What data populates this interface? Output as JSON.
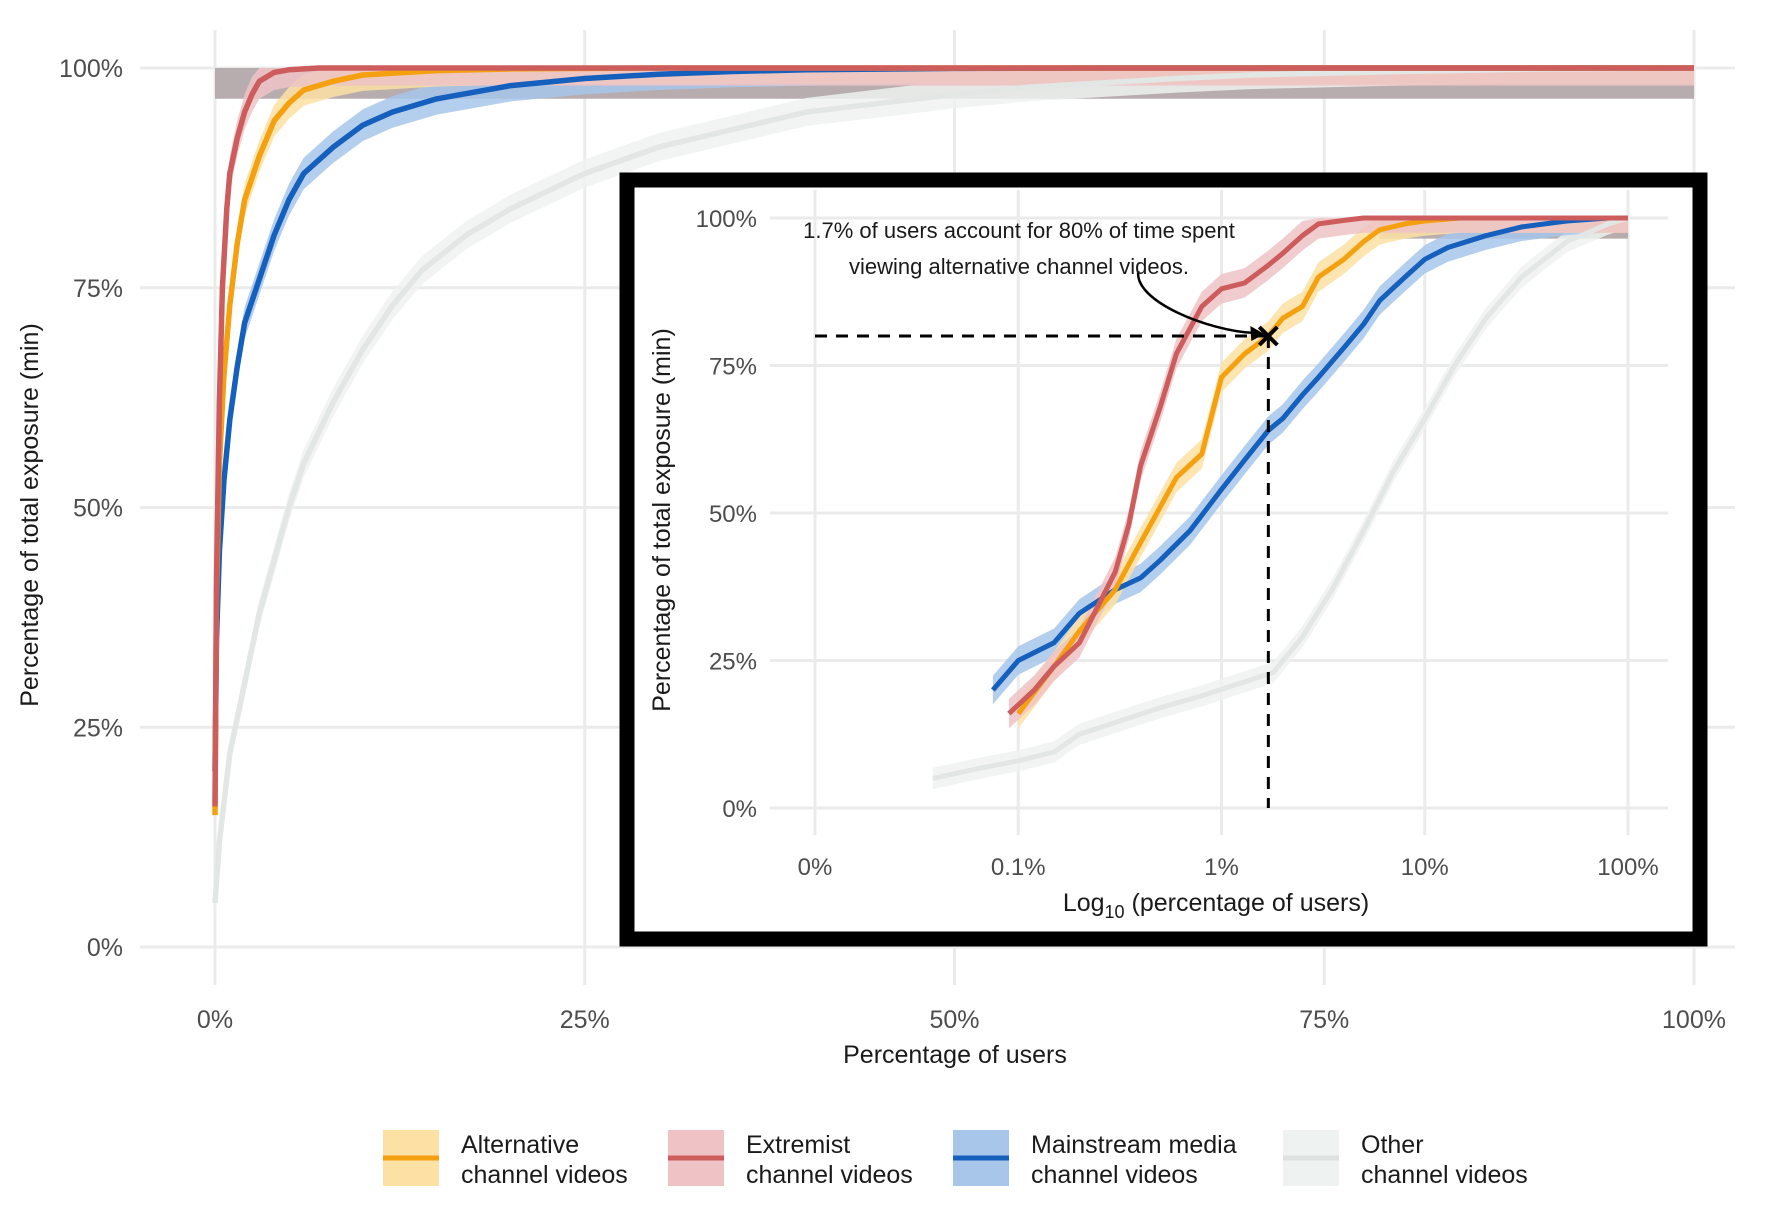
{
  "chart_data": [
    {
      "type": "line",
      "title": "",
      "xlabel": "Percentage of users",
      "ylabel": "Percentage of total exposure (min)",
      "x_ticks": [
        "0%",
        "25%",
        "50%",
        "75%",
        "100%"
      ],
      "y_ticks": [
        "0%",
        "25%",
        "50%",
        "75%",
        "100%"
      ],
      "xlim": [
        0,
        100
      ],
      "ylim": [
        0,
        100
      ],
      "grid": true,
      "series": [
        {
          "name": "Other channel videos",
          "color": "#e2e6e4",
          "band_color": "#eef2f0",
          "x": [
            0,
            0.3,
            1,
            2,
            3,
            4,
            5,
            6,
            8,
            10,
            12,
            14,
            17,
            20,
            25,
            30,
            35,
            40,
            45,
            50,
            55,
            60,
            65,
            70,
            80,
            90,
            100
          ],
          "y": [
            5,
            12,
            22,
            30,
            38,
            44,
            50,
            55,
            62,
            68,
            73,
            77,
            81,
            84,
            88,
            91,
            93,
            95,
            96,
            97,
            97.8,
            98.3,
            98.8,
            99.2,
            99.6,
            99.9,
            100
          ],
          "band": 1.6
        },
        {
          "name": "Mainstream media channel videos",
          "color": "#1560bd",
          "band_color": "#a7c6ea",
          "x": [
            0,
            0.1,
            0.3,
            0.6,
            1,
            1.5,
            2,
            3,
            4,
            5,
            6,
            8,
            10,
            12,
            15,
            20,
            25,
            30,
            35,
            40,
            50,
            60,
            100
          ],
          "y": [
            20,
            35,
            45,
            53,
            60,
            66,
            71,
            76,
            81,
            85,
            88,
            91,
            93.5,
            95,
            96.5,
            98,
            98.8,
            99.3,
            99.6,
            99.8,
            99.95,
            100,
            100
          ],
          "band": 1.8
        },
        {
          "name": "Alternative channel videos",
          "color": "#f5a00f",
          "band_color": "#fde0a3",
          "x": [
            0,
            0.1,
            0.3,
            0.6,
            1,
            1.5,
            2,
            3,
            4,
            5,
            6,
            8,
            10,
            15,
            20,
            30,
            50,
            100
          ],
          "y": [
            15,
            40,
            55,
            65,
            73,
            80,
            85,
            90,
            94,
            96,
            97.5,
            98.5,
            99.2,
            99.7,
            99.9,
            100,
            100,
            100
          ],
          "band": 1.8
        },
        {
          "name": "Extremist channel videos",
          "color": "#cd5c5c",
          "band_color": "#efc3c5",
          "x": [
            0,
            0.1,
            0.3,
            0.5,
            0.8,
            1,
            1.5,
            2,
            2.5,
            3,
            4,
            5,
            7,
            10,
            20,
            50,
            100
          ],
          "y": [
            16,
            42,
            62,
            75,
            84,
            88,
            92,
            95,
            97,
            98.5,
            99.5,
            99.8,
            100,
            100,
            100,
            100,
            100
          ],
          "band": 2.0
        }
      ],
      "shaded_region": {
        "x": [
          0,
          100
        ],
        "y": [
          96.5,
          100
        ],
        "color": "#b3a9ab"
      }
    },
    {
      "type": "line",
      "title": "",
      "xlabel": "Log10 (percentage of users)",
      "xlabel_main": "Log",
      "xlabel_sub": "10",
      "xlabel_rest": " (percentage of users)",
      "ylabel": "Percentage of total exposure (min)",
      "x_scale": "log10",
      "x_ticks": [
        "0%",
        "0.1%",
        "1%",
        "10%",
        "100%"
      ],
      "x_tick_values": [
        0.01,
        0.1,
        1,
        10,
        100
      ],
      "y_ticks": [
        "0%",
        "25%",
        "50%",
        "75%",
        "100%"
      ],
      "xlim": [
        0.01,
        100
      ],
      "ylim": [
        0,
        100
      ],
      "grid": true,
      "annotation": {
        "line1": "1.7% of users account for 80% of time spent",
        "line2": "viewing alternative channel videos.",
        "point": [
          1.7,
          80
        ]
      },
      "series": [
        {
          "name": "Other channel videos",
          "color": "#e2e6e4",
          "band_color": "#eef2f0",
          "x": [
            0.038,
            0.06,
            0.1,
            0.15,
            0.2,
            0.3,
            0.5,
            0.8,
            1.2,
            1.8,
            2.5,
            3.5,
            5,
            7,
            10,
            14,
            20,
            30,
            50,
            80,
            100
          ],
          "y": [
            5,
            6.5,
            8,
            9.5,
            12.5,
            14.5,
            17,
            19,
            21,
            23,
            29,
            37,
            47,
            57,
            66,
            75,
            83,
            90,
            96,
            99,
            100
          ],
          "band": 1.8
        },
        {
          "name": "Mainstream media channel videos",
          "color": "#1560bd",
          "band_color": "#a7c6ea",
          "x": [
            0.075,
            0.1,
            0.15,
            0.2,
            0.3,
            0.4,
            0.5,
            0.7,
            1.0,
            1.3,
            1.7,
            2.0,
            2.5,
            3.0,
            4.0,
            5.0,
            6.0,
            8.0,
            10,
            13,
            20,
            30,
            50,
            80,
            100
          ],
          "y": [
            20,
            25,
            28,
            33,
            37,
            39,
            42,
            47,
            54,
            59,
            64,
            66,
            70,
            73,
            78,
            82,
            86,
            90,
            93,
            95,
            97,
            98.5,
            99.5,
            100,
            100
          ],
          "band": 2.4
        },
        {
          "name": "Alternative channel videos",
          "color": "#f5a00f",
          "band_color": "#fde0a3",
          "x": [
            0.1,
            0.15,
            0.2,
            0.3,
            0.4,
            0.6,
            0.8,
            1.0,
            1.3,
            1.7,
            2.0,
            2.5,
            3.0,
            4.0,
            5.0,
            6.0,
            8.0,
            10,
            15,
            20,
            30,
            50,
            100
          ],
          "y": [
            16,
            24,
            30,
            37,
            45,
            56,
            60,
            73,
            77,
            80,
            83,
            85,
            90,
            93,
            96,
            98,
            99,
            99.5,
            100,
            100,
            100,
            100,
            100
          ],
          "band": 2.5
        },
        {
          "name": "Extremist channel videos",
          "color": "#cd5c5c",
          "band_color": "#efc3c5",
          "x": [
            0.09,
            0.12,
            0.15,
            0.2,
            0.3,
            0.35,
            0.4,
            0.5,
            0.6,
            0.8,
            1.0,
            1.3,
            1.7,
            2.0,
            2.5,
            3.0,
            4.0,
            5.0,
            7.0,
            10,
            20,
            50,
            100
          ],
          "y": [
            16,
            20,
            24,
            28,
            40,
            48,
            58,
            68,
            77,
            85,
            88,
            89,
            92,
            94,
            97,
            99,
            99.6,
            100,
            100,
            100,
            100,
            100,
            100
          ],
          "band": 2.5
        }
      ],
      "shaded_region": {
        "x": [
          6,
          100
        ],
        "y": [
          96.5,
          100
        ],
        "color": "#b3a9ab"
      }
    }
  ],
  "legend": {
    "items": [
      {
        "line1": "Alternative",
        "line2": "channel videos",
        "color": "#f5a00f",
        "band_color": "#fde0a3"
      },
      {
        "line1": "Extremist",
        "line2": "channel videos",
        "color": "#cd5c5c",
        "band_color": "#efc3c5"
      },
      {
        "line1": "Mainstream media",
        "line2": "channel videos",
        "color": "#1560bd",
        "band_color": "#a7c6ea"
      },
      {
        "line1": "Other",
        "line2": "channel videos",
        "color": "#dde2e0",
        "band_color": "#eef2f0"
      }
    ]
  }
}
